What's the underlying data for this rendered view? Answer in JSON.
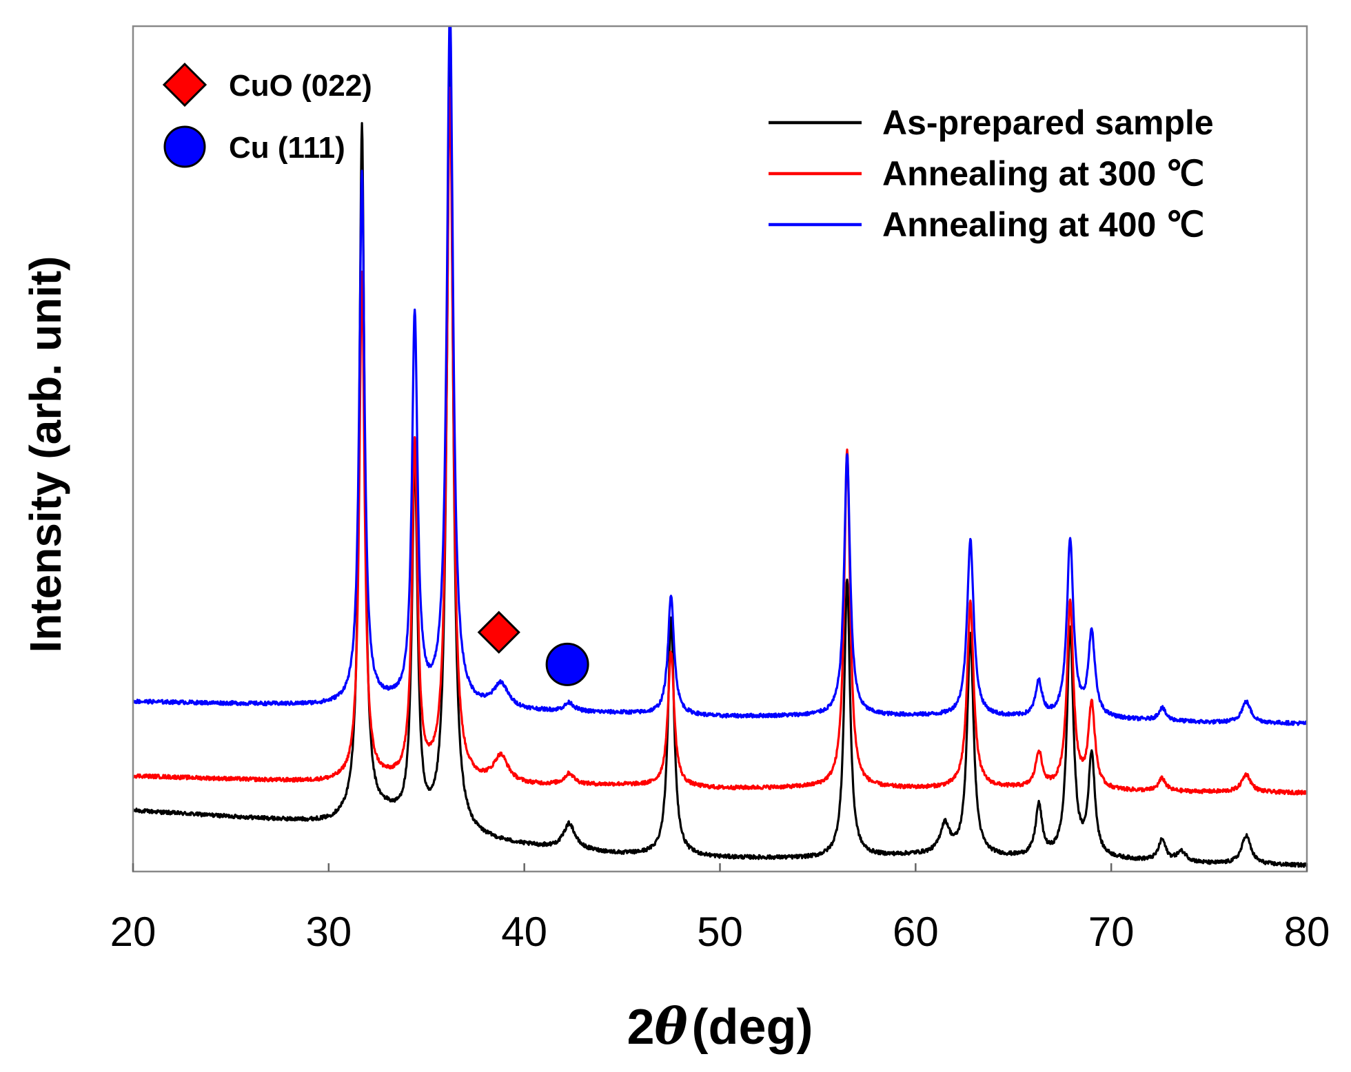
{
  "chart_data": {
    "type": "line",
    "xlabel": "2θ (deg)",
    "xlabel_prefix": "2",
    "xlabel_symbol": "θ",
    "xlabel_suffix": "(deg)",
    "ylabel": "Intensity (arb. unit)",
    "xlim": [
      20,
      80
    ],
    "ylim": [
      0,
      100
    ],
    "x_ticks": [
      20,
      30,
      40,
      50,
      60,
      70,
      80
    ],
    "x_tick_labels": [
      "20",
      "30",
      "40",
      "50",
      "60",
      "70",
      "80"
    ],
    "y_ticks_shown": false,
    "grid": false,
    "legend_position": "top-right",
    "series": [
      {
        "name": "As-prepared sample",
        "color": "#000000",
        "baseline": [
          [
            20,
            7.2
          ],
          [
            30,
            5.7
          ],
          [
            33,
            6.5
          ],
          [
            35,
            4.5
          ],
          [
            40,
            3.0
          ],
          [
            45,
            2.0
          ],
          [
            50,
            1.6
          ],
          [
            55,
            1.5
          ],
          [
            60,
            1.9
          ],
          [
            65,
            1.6
          ],
          [
            70,
            1.4
          ],
          [
            75,
            0.9
          ],
          [
            80,
            0.7
          ]
        ],
        "peaks": [
          {
            "x": 31.7,
            "h": 82,
            "w": 0.16
          },
          {
            "x": 34.4,
            "h": 43,
            "w": 0.17
          },
          {
            "x": 36.2,
            "h": 92,
            "w": 0.19
          },
          {
            "x": 42.3,
            "h": 3.0,
            "w": 0.35
          },
          {
            "x": 47.5,
            "h": 28,
            "w": 0.19
          },
          {
            "x": 56.5,
            "h": 33,
            "w": 0.18
          },
          {
            "x": 61.5,
            "h": 3.5,
            "w": 0.3
          },
          {
            "x": 62.8,
            "h": 26,
            "w": 0.2
          },
          {
            "x": 66.3,
            "h": 6,
            "w": 0.2
          },
          {
            "x": 67.9,
            "h": 27,
            "w": 0.2
          },
          {
            "x": 69.0,
            "h": 12,
            "w": 0.2
          },
          {
            "x": 72.6,
            "h": 2.5,
            "w": 0.22
          },
          {
            "x": 73.6,
            "h": 1.2,
            "w": 0.3
          },
          {
            "x": 76.9,
            "h": 3.4,
            "w": 0.28
          }
        ]
      },
      {
        "name": "Annealing at 300 ℃",
        "color": "#ff0000",
        "baseline": [
          [
            20,
            11.3
          ],
          [
            30,
            10.5
          ],
          [
            33,
            10.6
          ],
          [
            35,
            10.3
          ],
          [
            40,
            10.1
          ],
          [
            45,
            10.2
          ],
          [
            50,
            9.8
          ],
          [
            55,
            9.9
          ],
          [
            60,
            9.8
          ],
          [
            65,
            9.8
          ],
          [
            70,
            9.5
          ],
          [
            75,
            9.4
          ],
          [
            80,
            9.3
          ]
        ],
        "peaks": [
          {
            "x": 31.7,
            "h": 60,
            "w": 0.16
          },
          {
            "x": 34.4,
            "h": 40,
            "w": 0.17
          },
          {
            "x": 36.2,
            "h": 82,
            "w": 0.19
          },
          {
            "x": 38.8,
            "h": 3.2,
            "w": 0.45
          },
          {
            "x": 42.3,
            "h": 1.3,
            "w": 0.3
          },
          {
            "x": 47.5,
            "h": 16,
            "w": 0.19
          },
          {
            "x": 56.5,
            "h": 40,
            "w": 0.18
          },
          {
            "x": 62.8,
            "h": 22,
            "w": 0.2
          },
          {
            "x": 66.3,
            "h": 4.2,
            "w": 0.2
          },
          {
            "x": 67.9,
            "h": 22,
            "w": 0.2
          },
          {
            "x": 69.0,
            "h": 10,
            "w": 0.2
          },
          {
            "x": 72.6,
            "h": 1.5,
            "w": 0.22
          },
          {
            "x": 76.9,
            "h": 2.1,
            "w": 0.28
          }
        ]
      },
      {
        "name": "Annealing at 400 ℃",
        "color": "#0000ff",
        "baseline": [
          [
            20,
            20.1
          ],
          [
            30,
            19.6
          ],
          [
            33,
            19.8
          ],
          [
            35,
            19.3
          ],
          [
            40,
            18.9
          ],
          [
            45,
            18.7
          ],
          [
            50,
            18.3
          ],
          [
            55,
            18.4
          ],
          [
            60,
            18.4
          ],
          [
            65,
            18.2
          ],
          [
            70,
            18.0
          ],
          [
            75,
            17.6
          ],
          [
            80,
            17.5
          ]
        ],
        "peaks": [
          {
            "x": 31.7,
            "h": 63,
            "w": 0.16
          },
          {
            "x": 34.4,
            "h": 46,
            "w": 0.17
          },
          {
            "x": 36.2,
            "h": 83,
            "w": 0.19
          },
          {
            "x": 38.8,
            "h": 2.9,
            "w": 0.45
          },
          {
            "x": 42.3,
            "h": 1.0,
            "w": 0.3
          },
          {
            "x": 47.5,
            "h": 14,
            "w": 0.19
          },
          {
            "x": 56.5,
            "h": 31,
            "w": 0.18
          },
          {
            "x": 62.8,
            "h": 21,
            "w": 0.2
          },
          {
            "x": 66.3,
            "h": 4.1,
            "w": 0.2
          },
          {
            "x": 67.9,
            "h": 21,
            "w": 0.2
          },
          {
            "x": 69.0,
            "h": 10,
            "w": 0.2
          },
          {
            "x": 72.6,
            "h": 1.5,
            "w": 0.22
          },
          {
            "x": 76.9,
            "h": 2.5,
            "w": 0.28
          }
        ]
      }
    ],
    "markers": [
      {
        "label": "CuO (022)",
        "shape": "diamond",
        "color": "#ff0000",
        "x": 38.7,
        "y": 28.3
      },
      {
        "label": "Cu (111)",
        "shape": "circle",
        "color": "#0000ff",
        "x": 42.2,
        "y": 24.5
      }
    ]
  }
}
